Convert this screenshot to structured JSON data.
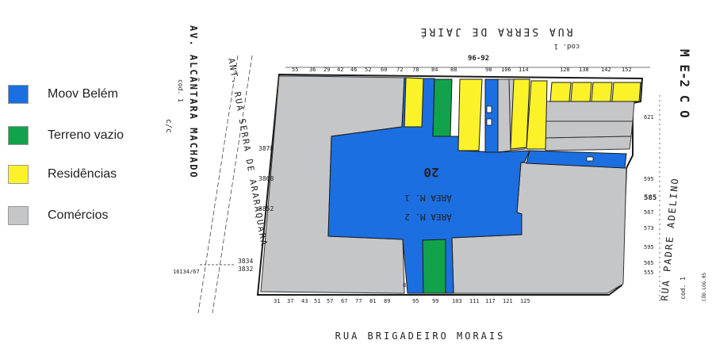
{
  "colors": {
    "moov": "#1c6fe0",
    "vazio": "#12a24b",
    "residencias": "#fbf22a",
    "comercios": "#c5c6c8",
    "outline": "#1a1a1a"
  },
  "legend": [
    {
      "label": "Moov Belém",
      "color": "#1c6fe0"
    },
    {
      "label": "Terreno vazio",
      "color": "#12a24b"
    },
    {
      "label": "Residências",
      "color": "#fbf22a"
    },
    {
      "label": "Comércios",
      "color": "#c5c6c8"
    }
  ],
  "map": {
    "street_top": "RUA SERRA DE JAIRÉ",
    "street_top_code": "cod. 1",
    "street_bottom": "RUA BRIGADEIRO MORAIS",
    "street_right": "RUA PADRE ADELINO",
    "street_right_code": "cod. 1",
    "street_right_codlog": "CÓD.LOG.05",
    "street_left_1": "AV. ALCÂNTARA MACHADO",
    "street_left_1_code": "cod. 1",
    "street_left_1_note": "c/c",
    "street_left_2": "ANT. RUA SERRA DE ARARAQUARA",
    "sector": "M E-2 C O",
    "area_m1": "ÁREA M. 1",
    "area_m2": "ÁREA M. 2",
    "block_label": "20",
    "lot_numbers_left": [
      "3878",
      "3868",
      "3852"
    ],
    "lot_numbers_left_bottom": [
      "3834",
      "3832"
    ],
    "lot_code_left": "16134/67",
    "lot_top_label": "96-92",
    "right_numbers": [
      "621",
      "595",
      "585",
      "567",
      "573",
      "595",
      "565",
      "555"
    ]
  }
}
